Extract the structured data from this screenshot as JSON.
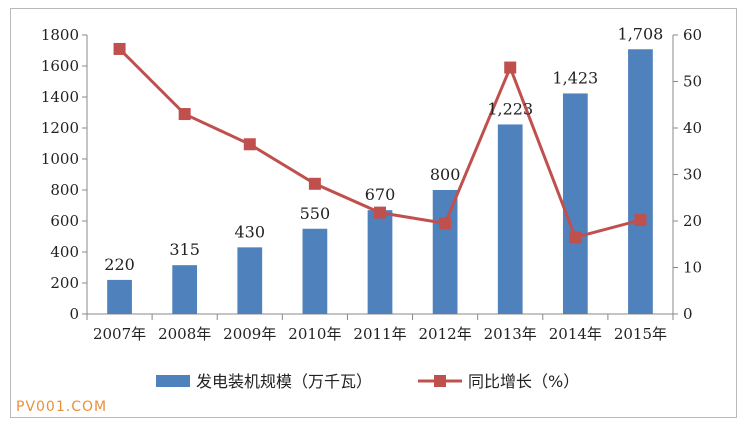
{
  "chart_data": {
    "type": "bar+line",
    "categories": [
      "2007年",
      "2008年",
      "2009年",
      "2010年",
      "2011年",
      "2012年",
      "2013年",
      "2014年",
      "2015年"
    ],
    "series": [
      {
        "name": "发电装机规模（万千瓦）",
        "type": "bar",
        "axis": "left",
        "color": "#4f81bd",
        "values": [
          220,
          315,
          430,
          550,
          670,
          800,
          1223,
          1423,
          1708
        ],
        "data_labels": [
          "220",
          "315",
          "430",
          "550",
          "670",
          "800",
          "1,223",
          "1,423",
          "1,708"
        ]
      },
      {
        "name": "同比增长（%）",
        "type": "line",
        "axis": "right",
        "color": "#c0504d",
        "values": [
          57,
          43,
          36.5,
          28,
          21.8,
          19.5,
          53,
          16.5,
          20.2
        ]
      }
    ],
    "y_left": {
      "ylim": [
        0,
        1800
      ],
      "ticks": [
        "0",
        "200",
        "400",
        "600",
        "800",
        "1000",
        "1200",
        "1400",
        "1600",
        "1800"
      ]
    },
    "y_right": {
      "ylim": [
        0,
        60
      ],
      "ticks": [
        "0",
        "10",
        "20",
        "30",
        "40",
        "50",
        "60"
      ]
    },
    "grid": false,
    "legend": "bottom"
  },
  "watermark": "PV001.COM"
}
